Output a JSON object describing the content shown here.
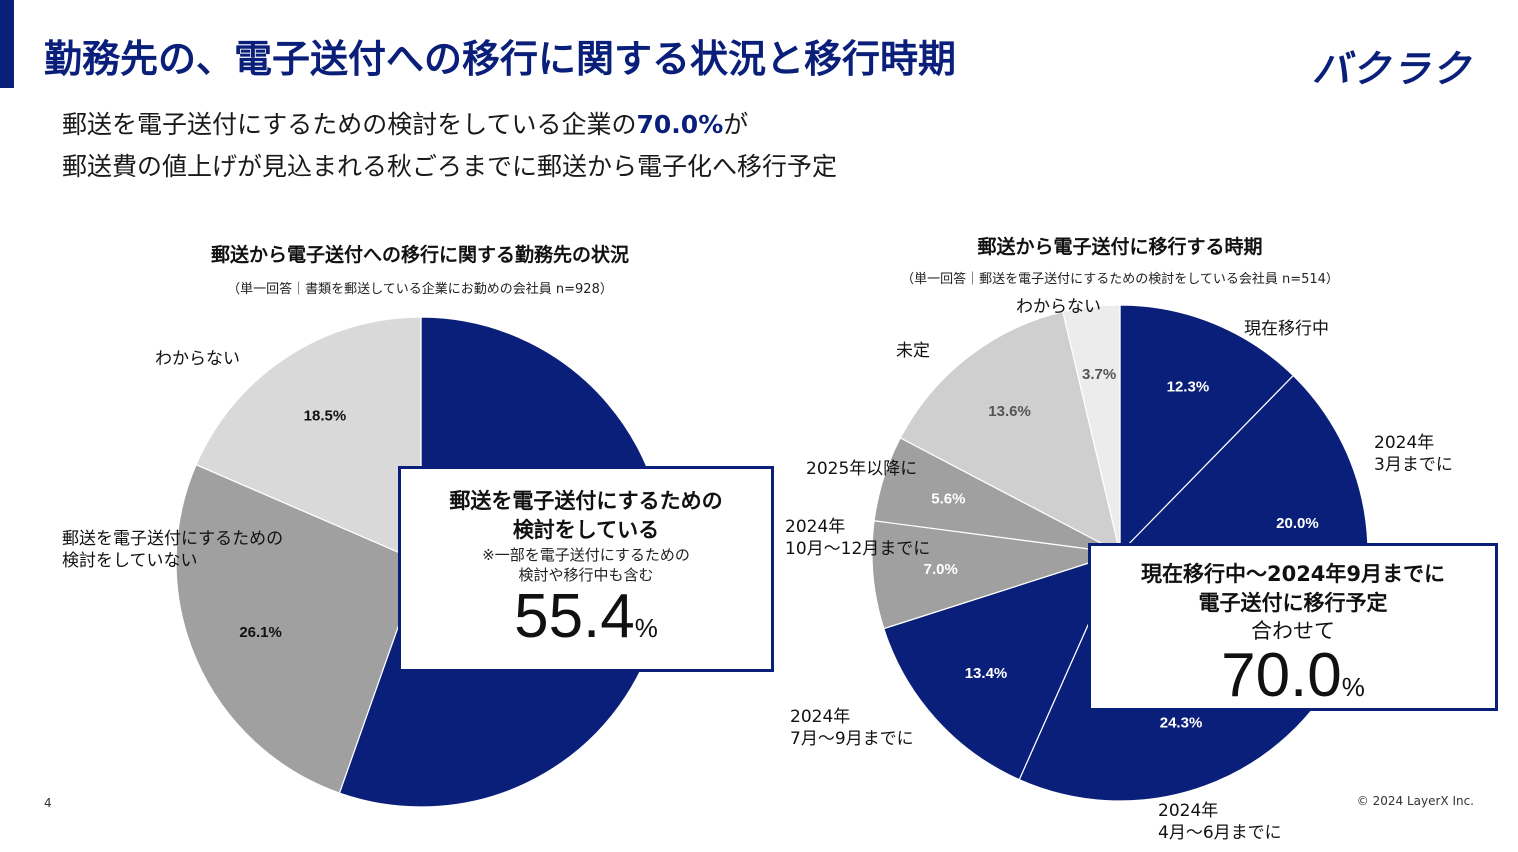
{
  "header": {
    "title": "勤務先の、電子送付への移行に関する状況と移行時期",
    "logo_text": "バクラク"
  },
  "headline": {
    "line1_pre": "郵送を電子送付にするための検討をしている企業の",
    "line1_highlight": "70.0%",
    "line1_post": "が",
    "line2": "郵送費の値上げが見込まれる秋ごろまでに郵送から電子化へ移行予定"
  },
  "colors": {
    "navy": "#0a1f7a",
    "gray_dark": "#a0a0a0",
    "gray_mid": "#bdbdbd",
    "gray_light": "#d9d9d9",
    "gray_lightest": "#ececec"
  },
  "chart_data": [
    {
      "type": "pie",
      "title": "郵送から電子送付への移行に関する勤務先の状況",
      "note": "（単一回答｜書類を郵送している企業にお勤めの会社員 n=928）",
      "slices": [
        {
          "label": "郵送を電子送付にするための検討をしている",
          "value": 55.4,
          "value_label": "",
          "color": "#0a1f7a",
          "text_color": "#ffffff"
        },
        {
          "label": "郵送を電子送付にするための\n検討をしていない",
          "value": 26.1,
          "value_label": "26.1%",
          "color": "#a0a0a0",
          "text_color": "#111111"
        },
        {
          "label": "わからない",
          "value": 18.5,
          "value_label": "18.5%",
          "color": "#d9d9d9",
          "text_color": "#111111"
        }
      ],
      "callout": {
        "line1": "郵送を電子送付にするための",
        "line2": "検討をしている",
        "note1": "※一部を電子送付にするための",
        "note2": "検討や移行中も含む",
        "value": "55.4",
        "unit": "%"
      }
    },
    {
      "type": "pie",
      "title": "郵送から電子送付に移行する時期",
      "note": "（単一回答｜郵送を電子送付にするための検討をしている会社員 n=514）",
      "slices": [
        {
          "label": "現在移行中",
          "value": 12.3,
          "value_label": "12.3%",
          "color": "#0a1f7a",
          "text_color": "#ffffff"
        },
        {
          "label": "2024年\n3月までに",
          "value": 20.0,
          "value_label": "20.0%",
          "color": "#0a1f7a",
          "text_color": "#ffffff"
        },
        {
          "label": "2024年\n4月～6月までに",
          "value": 24.3,
          "value_label": "24.3%",
          "color": "#0a1f7a",
          "text_color": "#ffffff"
        },
        {
          "label": "2024年\n7月～9月までに",
          "value": 13.4,
          "value_label": "13.4%",
          "color": "#0a1f7a",
          "text_color": "#ffffff"
        },
        {
          "label": "2024年\n10月～12月までに",
          "value": 7.0,
          "value_label": "7.0%",
          "color": "#a0a0a0",
          "text_color": "#ffffff"
        },
        {
          "label": "2025年以降に",
          "value": 5.6,
          "value_label": "5.6%",
          "color": "#a0a0a0",
          "text_color": "#ffffff"
        },
        {
          "label": "未定",
          "value": 13.6,
          "value_label": "13.6%",
          "color": "#cfcfcf",
          "text_color": "#555555"
        },
        {
          "label": "わからない",
          "value": 3.7,
          "value_label": "3.7%",
          "color": "#ececec",
          "text_color": "#555555"
        }
      ],
      "callout": {
        "line1": "現在移行中～2024年9月までに",
        "line2": "電子送付に移行予定",
        "line3": "合わせて",
        "value": "70.0",
        "unit": "%"
      }
    }
  ],
  "footer": {
    "page_number": "4",
    "copyright": "© 2024 LayerX Inc."
  }
}
